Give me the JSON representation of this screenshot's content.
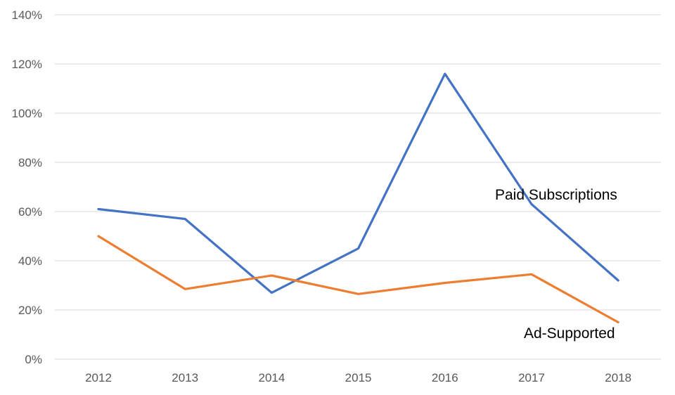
{
  "chart_data": {
    "type": "line",
    "categories": [
      "2012",
      "2013",
      "2014",
      "2015",
      "2016",
      "2017",
      "2018"
    ],
    "series": [
      {
        "name": "Paid Subscriptions",
        "color": "#4472c4",
        "values": [
          61,
          57,
          27,
          45,
          116,
          63,
          32
        ]
      },
      {
        "name": "Ad-Supported",
        "color": "#ed7d31",
        "values": [
          50,
          28.5,
          34,
          26.5,
          31,
          34.5,
          15
        ]
      }
    ],
    "y_ticks": [
      "0%",
      "20%",
      "40%",
      "60%",
      "80%",
      "100%",
      "120%",
      "140%"
    ],
    "ylim": [
      0,
      140
    ],
    "y_unit": "%",
    "grid": true,
    "legend": "inline-labels"
  }
}
